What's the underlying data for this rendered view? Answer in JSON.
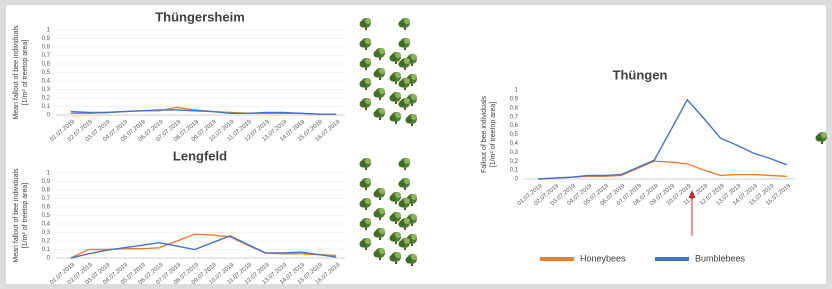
{
  "chart_data": [
    {
      "type": "line",
      "title": "Thüngersheim",
      "ylabel": [
        "Mean fallout of bee individuals",
        "[1/m² of treetop area]"
      ],
      "categories": [
        "01.07.2019",
        "02.07.2019",
        "03.07.2019",
        "04.07.2019",
        "05.07.2019",
        "06.07.2019",
        "07.07.2019",
        "08.07.2019",
        "09.07.2019",
        "10.07.2019",
        "11.07.2019",
        "12.07.2019",
        "13.07.2019",
        "14.07.2019",
        "15.07.2019",
        "16.07.2019"
      ],
      "series": [
        {
          "color": "#ed7d31",
          "values": [
            0.02,
            0.02,
            0.03,
            0.04,
            0.05,
            0.05,
            0.09,
            0.06,
            0.04,
            0.03,
            0.02,
            0.02,
            0.02,
            0.02,
            0.01,
            0.01
          ]
        },
        {
          "color": "#4472c4",
          "values": [
            0.04,
            0.03,
            0.03,
            0.04,
            0.05,
            0.06,
            0.06,
            0.05,
            0.04,
            0.02,
            0.02,
            0.03,
            0.03,
            0.02,
            0.01,
            0.01
          ]
        }
      ],
      "ylim": [
        0,
        1
      ],
      "yticks": [
        0,
        {
          "value": 0.1,
          "label": "0,1"
        },
        {
          "value": 0.2,
          "label": "0,2"
        },
        {
          "value": 0.3,
          "label": "0,3"
        },
        {
          "value": 0.4,
          "label": "0,4"
        },
        {
          "value": 0.5,
          "label": "0,5"
        },
        {
          "value": 0.6,
          "label": "0,6"
        },
        {
          "value": 0.7,
          "label": "0,7"
        },
        {
          "value": 0.8,
          "label": "0,8"
        },
        {
          "value": 0.9,
          "label": "0,9"
        },
        1
      ],
      "grid": true
    },
    {
      "type": "line",
      "title": "Lengfeld",
      "ylabel": [
        "Mean fallout of bee individuals",
        "[1/m² of treetop area]"
      ],
      "categories": [
        "01.07.2019",
        "02.07.2019",
        "03.07.2019",
        "04.07.2019",
        "05.07.2019",
        "06.07.2019",
        "07.07.2019",
        "08.07.2019",
        "09.07.2019",
        "10.07.2019",
        "11.07.2019",
        "12.07.2019",
        "13.07.2019",
        "14.07.2019",
        "15.07.2019",
        "16.07.2019"
      ],
      "series": [
        {
          "color": "#ed7d31",
          "values": [
            0,
            0.1,
            0.1,
            0.11,
            0.11,
            0.12,
            0.2,
            0.28,
            0.27,
            0.25,
            0.15,
            0.06,
            0.05,
            0.05,
            0.04,
            0.03
          ]
        },
        {
          "color": "#4472c4",
          "values": [
            0,
            0.05,
            0.09,
            0.12,
            0.15,
            0.18,
            0.14,
            0.1,
            0.18,
            0.26,
            0.16,
            0.06,
            0.06,
            0.07,
            0.04,
            0.01
          ]
        }
      ],
      "ylim": [
        0,
        1
      ],
      "yticks": [
        0,
        {
          "value": 0.1,
          "label": "0,1"
        },
        {
          "value": 0.2,
          "label": "0,2"
        },
        {
          "value": 0.3,
          "label": "0,3"
        },
        {
          "value": 0.4,
          "label": "0,4"
        },
        {
          "value": 0.5,
          "label": "0,5"
        },
        {
          "value": 0.6,
          "label": "0,6"
        },
        {
          "value": 0.7,
          "label": "0,7"
        },
        {
          "value": 0.8,
          "label": "0,8"
        },
        {
          "value": 0.9,
          "label": "0,9"
        },
        1
      ],
      "grid": true
    },
    {
      "type": "line",
      "title": "Thüngen",
      "ylabel": [
        "Fallout of bee individuals",
        "[1/m² of treetop area]"
      ],
      "categories": [
        "01.07.2019",
        "02.07.2019",
        "03.07.2019",
        "04.07.2019",
        "05.07.2019",
        "06.07.2019",
        "07.07.2019",
        "08.07.2019",
        "09.07.2019",
        "10.07.2019",
        "11.07.2019",
        "12.07.2019",
        "13.07.2019",
        "14.07.2019",
        "15.07.2019",
        "16.07.2019"
      ],
      "series": [
        {
          "name": "Honeybees",
          "color": "#ed7d31",
          "values": [
            0,
            0.01,
            0.02,
            0.03,
            0.03,
            0.04,
            0.12,
            0.2,
            0.19,
            0.17,
            0.1,
            0.04,
            0.05,
            0.05,
            0.04,
            0.03
          ]
        },
        {
          "name": "Bumblebees",
          "color": "#4472c4",
          "values": [
            0,
            0.01,
            0.02,
            0.04,
            0.04,
            0.05,
            0.13,
            0.21,
            0.55,
            0.89,
            0.68,
            0.46,
            0.38,
            0.29,
            0.23,
            0.16
          ]
        }
      ],
      "ylim": [
        0,
        1
      ],
      "yticks": [
        0,
        {
          "value": 0.1,
          "label": "0,1"
        },
        {
          "value": 0.2,
          "label": "0,2"
        },
        {
          "value": 0.3,
          "label": "0,3"
        },
        {
          "value": 0.4,
          "label": "0,4"
        },
        {
          "value": 0.5,
          "label": "0,5"
        },
        {
          "value": 0.6,
          "label": "0,6"
        },
        {
          "value": 0.7,
          "label": "0,7"
        },
        {
          "value": 0.8,
          "label": "0,8"
        },
        {
          "value": 0.9,
          "label": "0,9"
        },
        1
      ],
      "grid": false,
      "legend": "bottom"
    }
  ]
}
